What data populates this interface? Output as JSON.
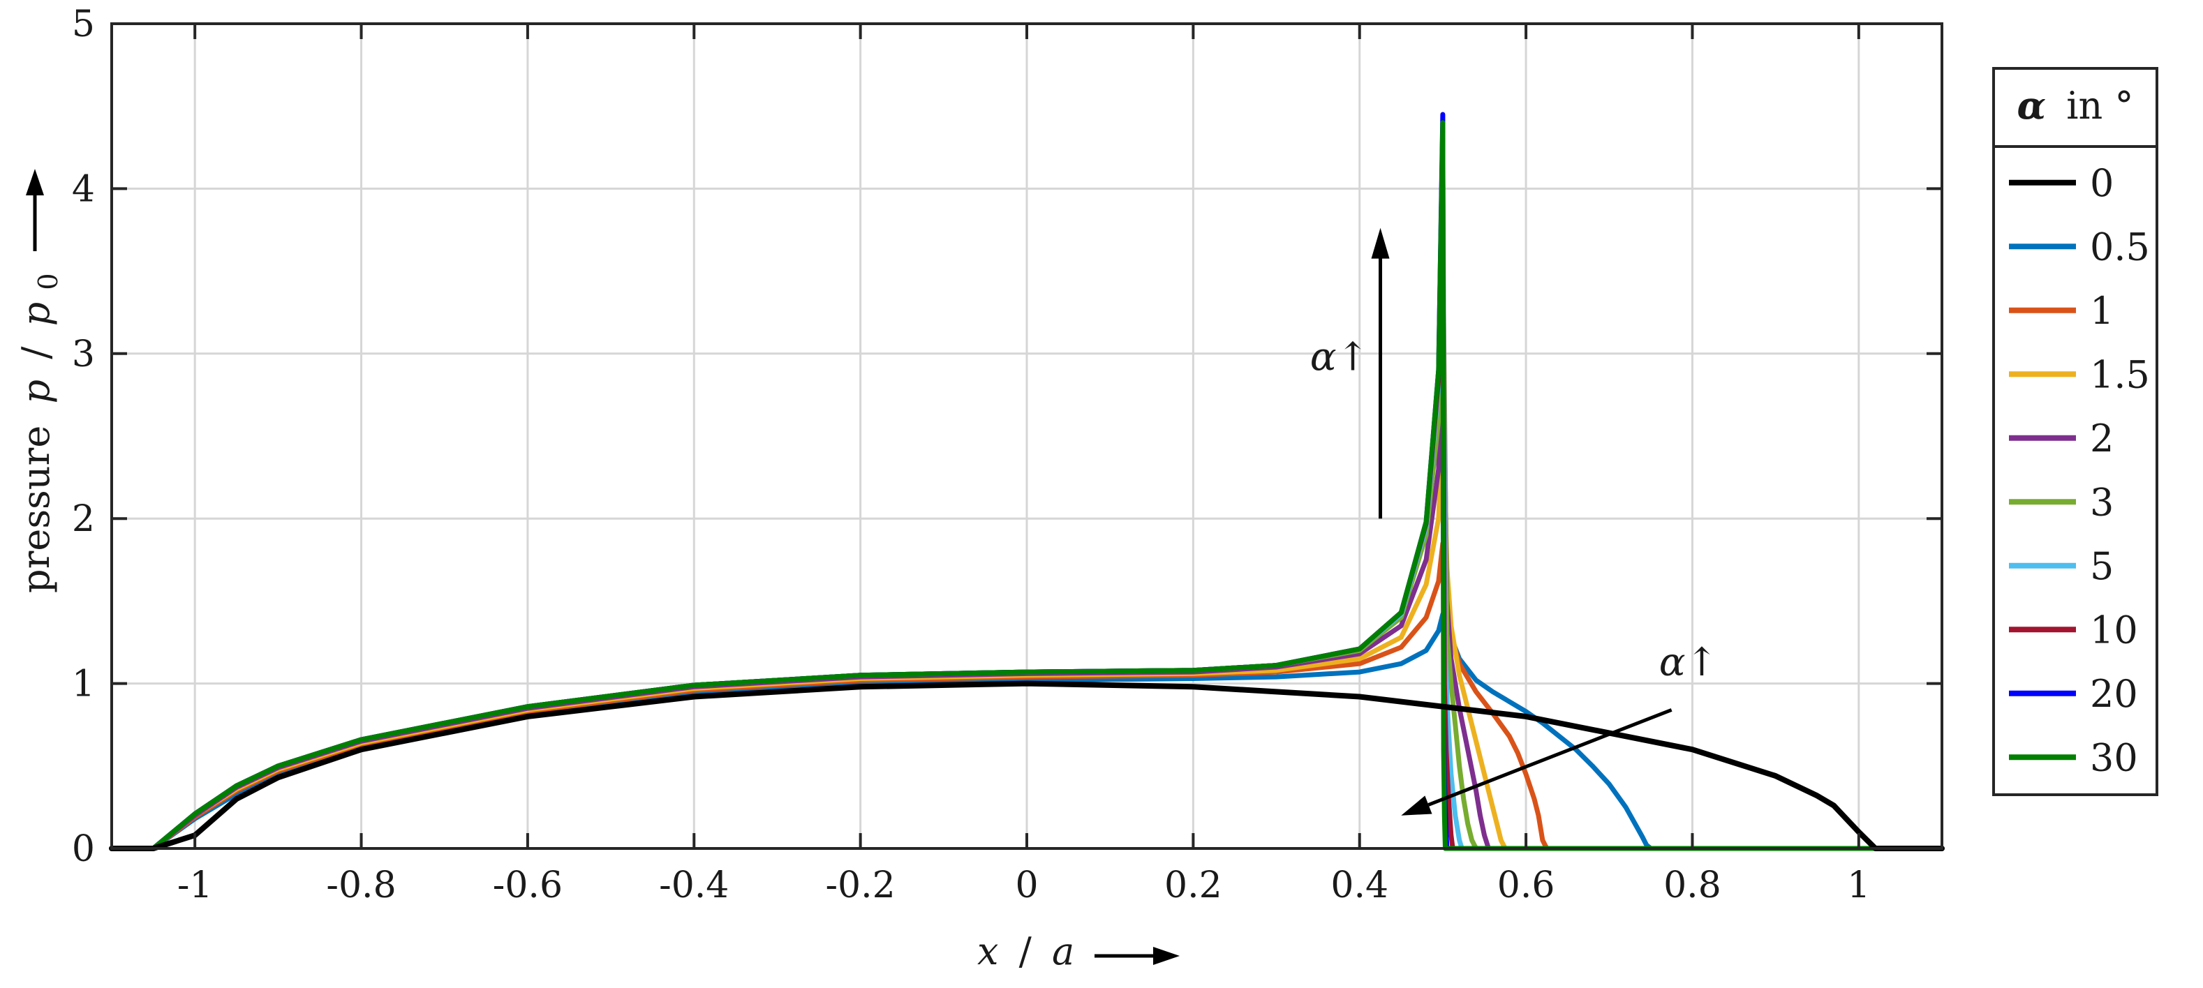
{
  "chart_data": {
    "type": "line",
    "ylabel": "pressure p / p0",
    "ylabel_parts": {
      "word": "pressure",
      "p": "p",
      "slash": "/",
      "p0": "p",
      "sub": "0"
    },
    "xlabel": "x / a",
    "xlabel_parts": {
      "x": "x",
      "slash": "/",
      "a": "a"
    },
    "xlim": [
      -1.1,
      1.1
    ],
    "ylim": [
      0,
      5
    ],
    "xticks": [
      -1,
      -0.8,
      -0.6,
      -0.4,
      -0.2,
      0,
      0.2,
      0.4,
      0.6,
      0.8,
      1
    ],
    "xtick_labels": [
      "-1",
      "-0.8",
      "-0.6",
      "-0.4",
      "-0.2",
      "0",
      "0.2",
      "0.4",
      "0.6",
      "0.8",
      "1"
    ],
    "yticks": [
      0,
      1,
      2,
      3,
      4,
      5
    ],
    "ytick_labels": [
      "0",
      "1",
      "2",
      "3",
      "4",
      "5"
    ],
    "grid": true,
    "legend": {
      "title_symbol": "α",
      "title_text": "in °",
      "placement": "outside-right",
      "entries": [
        "0",
        "0.5",
        "1",
        "1.5",
        "2",
        "3",
        "5",
        "10",
        "20",
        "30"
      ]
    },
    "annotations": [
      {
        "text": "α↑",
        "description": "arrow pointing upward near x=0.42, from y≈2 to y≈3.7"
      },
      {
        "text": "α↑",
        "description": "arrow pointing down-left from about (0.77, 0.85) to (0.45, 0.2)"
      }
    ],
    "series": [
      {
        "name": "0",
        "color": "#000000",
        "x": [
          -1.1,
          -1.05,
          -1.0,
          -0.95,
          -0.9,
          -0.8,
          -0.6,
          -0.4,
          -0.2,
          0.0,
          0.2,
          0.4,
          0.6,
          0.8,
          0.9,
          0.95,
          0.97,
          1.0,
          1.02,
          1.1
        ],
        "y": [
          0,
          0,
          0.08,
          0.3,
          0.43,
          0.6,
          0.8,
          0.92,
          0.98,
          1.0,
          0.98,
          0.92,
          0.8,
          0.6,
          0.44,
          0.32,
          0.26,
          0.1,
          0,
          0
        ]
      },
      {
        "name": "0.5",
        "color": "#0072BD",
        "x": [
          -1.1,
          -1.05,
          -1.0,
          -0.95,
          -0.9,
          -0.8,
          -0.6,
          -0.4,
          -0.2,
          0.0,
          0.2,
          0.3,
          0.4,
          0.45,
          0.48,
          0.495,
          0.5,
          0.505,
          0.51,
          0.52,
          0.54,
          0.56,
          0.58,
          0.6,
          0.62,
          0.64,
          0.66,
          0.68,
          0.7,
          0.72,
          0.73,
          0.74,
          0.745,
          0.75,
          1.1
        ],
        "y": [
          0,
          0,
          0.18,
          0.33,
          0.45,
          0.62,
          0.82,
          0.94,
          1.0,
          1.02,
          1.03,
          1.04,
          1.07,
          1.12,
          1.2,
          1.32,
          1.42,
          1.38,
          1.28,
          1.15,
          1.02,
          0.95,
          0.89,
          0.83,
          0.76,
          0.68,
          0.6,
          0.5,
          0.39,
          0.25,
          0.16,
          0.07,
          0.02,
          0,
          0
        ]
      },
      {
        "name": "1",
        "color": "#D95319",
        "x": [
          -1.1,
          -1.05,
          -1.0,
          -0.95,
          -0.9,
          -0.8,
          -0.6,
          -0.4,
          -0.2,
          0.0,
          0.2,
          0.3,
          0.4,
          0.45,
          0.48,
          0.495,
          0.5,
          0.505,
          0.51,
          0.52,
          0.54,
          0.56,
          0.58,
          0.59,
          0.6,
          0.61,
          0.615,
          0.62,
          0.625,
          1.1
        ],
        "y": [
          0,
          0,
          0.19,
          0.35,
          0.47,
          0.63,
          0.83,
          0.96,
          1.02,
          1.04,
          1.05,
          1.07,
          1.12,
          1.22,
          1.4,
          1.62,
          1.85,
          1.5,
          1.3,
          1.12,
          0.95,
          0.82,
          0.68,
          0.58,
          0.45,
          0.3,
          0.2,
          0.05,
          0,
          0
        ]
      },
      {
        "name": "1.5",
        "color": "#EDB120",
        "x": [
          -1.1,
          -1.05,
          -1.0,
          -0.95,
          -0.9,
          -0.8,
          -0.6,
          -0.4,
          -0.2,
          0.0,
          0.2,
          0.3,
          0.4,
          0.45,
          0.48,
          0.495,
          0.5,
          0.505,
          0.51,
          0.52,
          0.53,
          0.54,
          0.55,
          0.56,
          0.565,
          0.57,
          0.575,
          1.1
        ],
        "y": [
          0,
          0,
          0.2,
          0.36,
          0.48,
          0.64,
          0.84,
          0.97,
          1.03,
          1.05,
          1.06,
          1.08,
          1.15,
          1.28,
          1.6,
          2.0,
          2.6,
          1.7,
          1.35,
          1.05,
          0.85,
          0.65,
          0.45,
          0.25,
          0.15,
          0.05,
          0,
          0
        ]
      },
      {
        "name": "2",
        "color": "#7E2F8E",
        "x": [
          -1.1,
          -1.05,
          -1.0,
          -0.95,
          -0.9,
          -0.8,
          -0.6,
          -0.4,
          -0.2,
          0.0,
          0.2,
          0.3,
          0.4,
          0.45,
          0.48,
          0.495,
          0.5,
          0.505,
          0.51,
          0.52,
          0.53,
          0.54,
          0.545,
          0.55,
          0.555,
          1.1
        ],
        "y": [
          0,
          0,
          0.2,
          0.37,
          0.49,
          0.65,
          0.85,
          0.98,
          1.04,
          1.06,
          1.07,
          1.1,
          1.18,
          1.35,
          1.75,
          2.3,
          3.2,
          1.5,
          1.15,
          0.85,
          0.6,
          0.35,
          0.2,
          0.08,
          0,
          0
        ]
      },
      {
        "name": "3",
        "color": "#77AC30",
        "x": [
          -1.1,
          -1.05,
          -1.0,
          -0.95,
          -0.9,
          -0.8,
          -0.6,
          -0.4,
          -0.2,
          0.0,
          0.2,
          0.3,
          0.4,
          0.45,
          0.48,
          0.495,
          0.5,
          0.505,
          0.51,
          0.515,
          0.52,
          0.525,
          0.53,
          0.535,
          0.54,
          1.1
        ],
        "y": [
          0,
          0,
          0.21,
          0.38,
          0.5,
          0.66,
          0.86,
          0.99,
          1.05,
          1.07,
          1.08,
          1.11,
          1.2,
          1.4,
          1.9,
          2.6,
          3.7,
          1.3,
          1.0,
          0.75,
          0.5,
          0.3,
          0.15,
          0.05,
          0,
          0
        ]
      },
      {
        "name": "5",
        "color": "#4DBEEE",
        "x": [
          -1.1,
          -1.05,
          -1.0,
          -0.95,
          -0.9,
          -0.8,
          -0.6,
          -0.4,
          -0.2,
          0.0,
          0.2,
          0.3,
          0.4,
          0.45,
          0.48,
          0.495,
          0.5,
          0.503,
          0.506,
          0.51,
          0.515,
          0.52,
          0.523,
          1.1
        ],
        "y": [
          0,
          0,
          0.21,
          0.38,
          0.5,
          0.66,
          0.86,
          0.99,
          1.05,
          1.07,
          1.08,
          1.11,
          1.21,
          1.42,
          1.95,
          2.8,
          4.15,
          1.2,
          0.8,
          0.45,
          0.2,
          0.05,
          0,
          0
        ]
      },
      {
        "name": "10",
        "color": "#A2142F",
        "x": [
          -1.1,
          -1.05,
          -1.0,
          -0.95,
          -0.9,
          -0.8,
          -0.6,
          -0.4,
          -0.2,
          0.0,
          0.2,
          0.3,
          0.4,
          0.45,
          0.48,
          0.495,
          0.5,
          0.502,
          0.504,
          0.507,
          0.51,
          0.512,
          1.1
        ],
        "y": [
          0,
          0,
          0.21,
          0.38,
          0.5,
          0.66,
          0.86,
          0.99,
          1.05,
          1.07,
          1.08,
          1.11,
          1.21,
          1.43,
          1.97,
          2.85,
          4.3,
          1.0,
          0.6,
          0.3,
          0.08,
          0,
          0
        ]
      },
      {
        "name": "20",
        "color": "#0000FF",
        "x": [
          -1.1,
          -1.05,
          -1.0,
          -0.95,
          -0.9,
          -0.8,
          -0.6,
          -0.4,
          -0.2,
          0.0,
          0.2,
          0.3,
          0.4,
          0.45,
          0.48,
          0.495,
          0.5,
          0.501,
          0.502,
          0.504,
          0.505,
          1.1
        ],
        "y": [
          0,
          0,
          0.21,
          0.38,
          0.5,
          0.66,
          0.86,
          0.99,
          1.05,
          1.07,
          1.08,
          1.11,
          1.21,
          1.43,
          1.98,
          2.9,
          4.45,
          0.8,
          0.4,
          0.1,
          0,
          0
        ]
      },
      {
        "name": "30",
        "color": "#008000",
        "x": [
          -1.1,
          -1.05,
          -1.0,
          -0.95,
          -0.9,
          -0.8,
          -0.6,
          -0.4,
          -0.2,
          0.0,
          0.2,
          0.3,
          0.4,
          0.45,
          0.48,
          0.495,
          0.5,
          0.501,
          0.502,
          0.503,
          1.1
        ],
        "y": [
          0,
          0,
          0.21,
          0.38,
          0.5,
          0.66,
          0.86,
          0.99,
          1.05,
          1.07,
          1.08,
          1.11,
          1.21,
          1.43,
          1.98,
          2.9,
          4.4,
          0.6,
          0.2,
          0,
          0
        ]
      }
    ]
  }
}
